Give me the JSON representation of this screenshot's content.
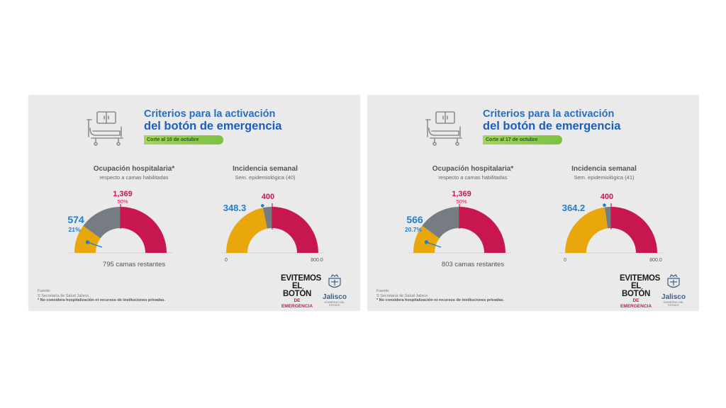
{
  "panels": [
    {
      "title_line1": "Criterios para la activación",
      "title_line2": "del botón de emergencia",
      "cut_label": "Corte al 10 de octubre",
      "occupancy": {
        "title": "Ocupación hospitalaria*",
        "subtitle": "respecto a camas habilitadas",
        "current_label": "574",
        "current_pct_label": "21%",
        "threshold_label": "1,369",
        "threshold_pct_label": "50%",
        "remaining_label": "795 camas restantes",
        "pointer_fraction": 0.21
      },
      "incidence": {
        "title": "Incidencia semanal",
        "subtitle": "Sem. epidemiológica (40)",
        "current_label": "348.3",
        "threshold_label": "400",
        "min_label": "0",
        "max_label": "800.0",
        "value": 348.3,
        "threshold": 400,
        "max": 800
      },
      "source_label": "Fuente:",
      "source_name": "S Secretaría de Salud Jalisco",
      "note": "* No considera hospitalización ni recursos de instituciones privadas."
    },
    {
      "title_line1": "Criterios para la activación",
      "title_line2": "del botón de emergencia",
      "cut_label": "Corte al 17 de octubre",
      "occupancy": {
        "title": "Ocupación hospitalaria*",
        "subtitle": "respecto a camas habilitadas",
        "current_label": "566",
        "current_pct_label": "20.7%",
        "threshold_label": "1,369",
        "threshold_pct_label": "50%",
        "remaining_label": "803 camas restantes",
        "pointer_fraction": 0.207
      },
      "incidence": {
        "title": "Incidencia semanal",
        "subtitle": "Sem. epidemiológica (41)",
        "current_label": "364.2",
        "threshold_label": "400",
        "min_label": "0",
        "max_label": "800.0",
        "value": 364.2,
        "threshold": 400,
        "max": 800
      },
      "source_label": "Fuente:",
      "source_name": "S Secretaría de Salud Jalisco",
      "note": "* No considera hospitalización ni recursos de instituciones privadas."
    }
  ],
  "logo": {
    "line1": "EVITEMOS",
    "line2": "EL BOTÓN",
    "line3": "DE EMERGENCIA"
  },
  "jalisco": {
    "name": "Jalisco",
    "gov": "GOBIERNO DEL ESTADO"
  },
  "colors": {
    "blue": "#1f7fcf",
    "red": "#c8174f",
    "yellow": "#e8a70a",
    "gray": "#777b82",
    "green": "#7cc144"
  },
  "chart_data": [
    {
      "type": "gauge",
      "title": "Ocupación hospitalaria*",
      "series": [
        {
          "name": "Corte al 10 de octubre",
          "value": 574,
          "percent": 21,
          "threshold": 1369,
          "threshold_percent": 50,
          "remaining": 795
        },
        {
          "name": "Corte al 17 de octubre",
          "value": 566,
          "percent": 20.7,
          "threshold": 1369,
          "threshold_percent": 50,
          "remaining": 803
        }
      ]
    },
    {
      "type": "gauge",
      "title": "Incidencia semanal",
      "ylim": [
        0,
        800
      ],
      "series": [
        {
          "name": "Sem. epidemiológica (40)",
          "value": 348.3,
          "threshold": 400
        },
        {
          "name": "Sem. epidemiológica (41)",
          "value": 364.2,
          "threshold": 400
        }
      ]
    }
  ]
}
